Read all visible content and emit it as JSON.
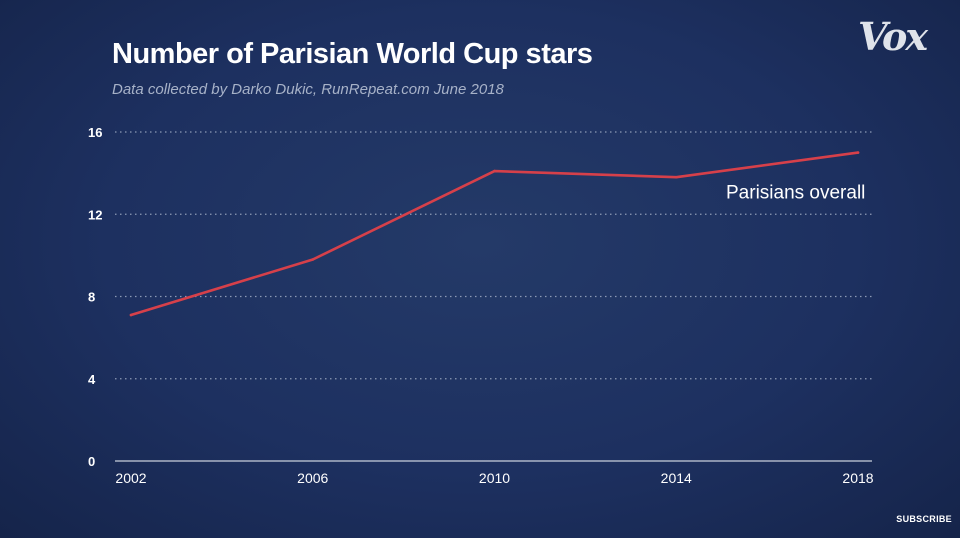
{
  "branding": {
    "logo_text": "Vox",
    "subscribe_label": "SUBSCRIBE"
  },
  "chart_data": {
    "type": "line",
    "title": "Number of Parisian World Cup stars",
    "subtitle": "Data collected by Darko Dukic, RunRepeat.com June 2018",
    "xlabel": "",
    "ylabel": "",
    "x": [
      2002,
      2006,
      2010,
      2014,
      2018
    ],
    "x_tick_labels": [
      "2002",
      "2006",
      "2010",
      "2014",
      "2018"
    ],
    "y_ticks": [
      0,
      4,
      8,
      12,
      16
    ],
    "y_tick_labels": [
      "0",
      "4",
      "8",
      "12",
      "16"
    ],
    "ylim": [
      0,
      16
    ],
    "grid": true,
    "series": [
      {
        "name": "Parisians overall",
        "values": [
          7.1,
          9.8,
          14.1,
          13.8,
          15.0
        ],
        "color": "#d6404a"
      }
    ]
  }
}
